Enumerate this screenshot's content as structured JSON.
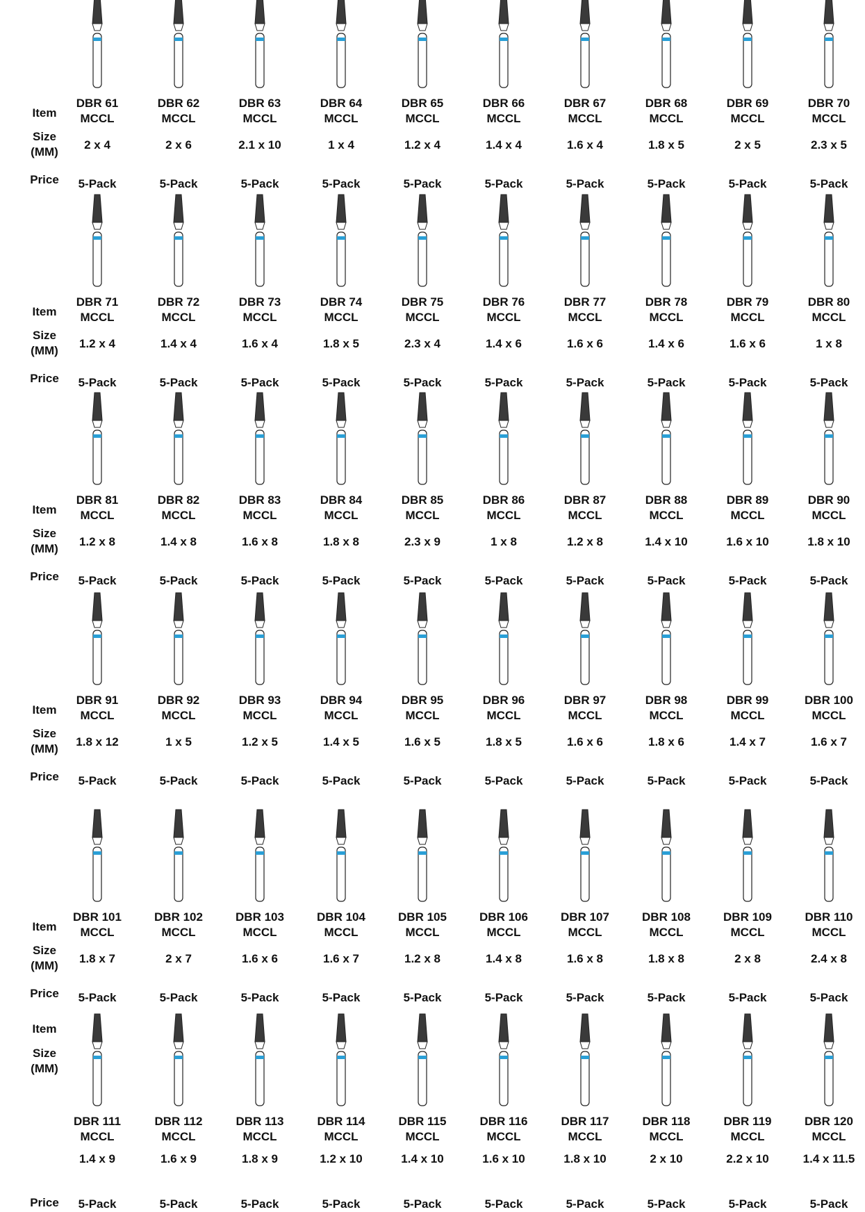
{
  "groups": [
    {
      "labels": {
        "item": "Item",
        "size": "Size (MM)",
        "price": "Price"
      },
      "items": [
        {
          "name": "DBR 61",
          "suffix": "MCCL",
          "size": "2 x 4",
          "price": "5-Pack"
        },
        {
          "name": "DBR 62",
          "suffix": "MCCL",
          "size": "2 x 6",
          "price": "5-Pack"
        },
        {
          "name": "DBR 63",
          "suffix": "MCCL",
          "size": "2.1 x 10",
          "price": "5-Pack"
        },
        {
          "name": "DBR 64",
          "suffix": "MCCL",
          "size": "1 x 4",
          "price": "5-Pack"
        },
        {
          "name": "DBR 65",
          "suffix": "MCCL",
          "size": "1.2 x 4",
          "price": "5-Pack"
        },
        {
          "name": "DBR 66",
          "suffix": "MCCL",
          "size": "1.4 x 4",
          "price": "5-Pack"
        },
        {
          "name": "DBR 67",
          "suffix": "MCCL",
          "size": "1.6 x 4",
          "price": "5-Pack"
        },
        {
          "name": "DBR 68",
          "suffix": "MCCL",
          "size": "1.8 x 5",
          "price": "5-Pack"
        },
        {
          "name": "DBR 69",
          "suffix": "MCCL",
          "size": "2 x 5",
          "price": "5-Pack"
        },
        {
          "name": "DBR 70",
          "suffix": "MCCL",
          "size": "2.3 x 5",
          "price": "5-Pack"
        }
      ]
    },
    {
      "labels": {
        "item": "Item",
        "size": "Size (MM)",
        "price": "Price"
      },
      "items": [
        {
          "name": "DBR 71",
          "suffix": "MCCL",
          "size": "1.2 x 4",
          "price": "5-Pack"
        },
        {
          "name": "DBR 72",
          "suffix": "MCCL",
          "size": "1.4 x 4",
          "price": "5-Pack"
        },
        {
          "name": "DBR 73",
          "suffix": "MCCL",
          "size": "1.6 x 4",
          "price": "5-Pack"
        },
        {
          "name": "DBR 74",
          "suffix": "MCCL",
          "size": "1.8 x 5",
          "price": "5-Pack"
        },
        {
          "name": "DBR 75",
          "suffix": "MCCL",
          "size": "2.3 x 4",
          "price": "5-Pack"
        },
        {
          "name": "DBR 76",
          "suffix": "MCCL",
          "size": "1.4 x 6",
          "price": "5-Pack"
        },
        {
          "name": "DBR 77",
          "suffix": "MCCL",
          "size": "1.6 x 6",
          "price": "5-Pack"
        },
        {
          "name": "DBR 78",
          "suffix": "MCCL",
          "size": "1.4 x 6",
          "price": "5-Pack"
        },
        {
          "name": "DBR 79",
          "suffix": "MCCL",
          "size": "1.6 x 6",
          "price": "5-Pack"
        },
        {
          "name": "DBR 80",
          "suffix": "MCCL",
          "size": "1 x 8",
          "price": "5-Pack"
        }
      ]
    },
    {
      "labels": {
        "item": "Item",
        "size": "Size (MM)",
        "price": "Price"
      },
      "items": [
        {
          "name": "DBR 81",
          "suffix": "MCCL",
          "size": "1.2 x 8",
          "price": "5-Pack"
        },
        {
          "name": "DBR 82",
          "suffix": "MCCL",
          "size": "1.4 x 8",
          "price": "5-Pack"
        },
        {
          "name": "DBR 83",
          "suffix": "MCCL",
          "size": "1.6 x 8",
          "price": "5-Pack"
        },
        {
          "name": "DBR 84",
          "suffix": "MCCL",
          "size": "1.8 x 8",
          "price": "5-Pack"
        },
        {
          "name": "DBR 85",
          "suffix": "MCCL",
          "size": "2.3 x 9",
          "price": "5-Pack"
        },
        {
          "name": "DBR 86",
          "suffix": "MCCL",
          "size": "1 x 8",
          "price": "5-Pack"
        },
        {
          "name": "DBR 87",
          "suffix": "MCCL",
          "size": "1.2 x 8",
          "price": "5-Pack"
        },
        {
          "name": "DBR 88",
          "suffix": "MCCL",
          "size": "1.4 x 10",
          "price": "5-Pack"
        },
        {
          "name": "DBR 89",
          "suffix": "MCCL",
          "size": "1.6 x 10",
          "price": "5-Pack"
        },
        {
          "name": "DBR 90",
          "suffix": "MCCL",
          "size": "1.8 x 10",
          "price": "5-Pack"
        }
      ]
    },
    {
      "labels": {
        "item": "Item",
        "size": "Size (MM)",
        "price": "Price"
      },
      "items": [
        {
          "name": "DBR 91",
          "suffix": "MCCL",
          "size": "1.8 x 12",
          "price": "5-Pack"
        },
        {
          "name": "DBR 92",
          "suffix": "MCCL",
          "size": "1 x 5",
          "price": "5-Pack"
        },
        {
          "name": "DBR 93",
          "suffix": "MCCL",
          "size": "1.2 x 5",
          "price": "5-Pack"
        },
        {
          "name": "DBR 94",
          "suffix": "MCCL",
          "size": "1.4 x 5",
          "price": "5-Pack"
        },
        {
          "name": "DBR 95",
          "suffix": "MCCL",
          "size": "1.6 x 5",
          "price": "5-Pack"
        },
        {
          "name": "DBR 96",
          "suffix": "MCCL",
          "size": "1.8 x 5",
          "price": "5-Pack"
        },
        {
          "name": "DBR 97",
          "suffix": "MCCL",
          "size": "1.6 x 6",
          "price": "5-Pack"
        },
        {
          "name": "DBR 98",
          "suffix": "MCCL",
          "size": "1.8 x 6",
          "price": "5-Pack"
        },
        {
          "name": "DBR 99",
          "suffix": "MCCL",
          "size": "1.4 x 7",
          "price": "5-Pack"
        },
        {
          "name": "DBR 100",
          "suffix": "MCCL",
          "size": "1.6 x 7",
          "price": "5-Pack"
        }
      ]
    },
    {
      "labels": {
        "item": "Item",
        "size": "Size (MM)",
        "price": "Price"
      },
      "items": [
        {
          "name": "DBR 101",
          "suffix": "MCCL",
          "size": "1.8 x 7",
          "price": "5-Pack"
        },
        {
          "name": "DBR 102",
          "suffix": "MCCL",
          "size": "2 x 7",
          "price": "5-Pack"
        },
        {
          "name": "DBR 103",
          "suffix": "MCCL",
          "size": "1.6 x 6",
          "price": "5-Pack"
        },
        {
          "name": "DBR 104",
          "suffix": "MCCL",
          "size": "1.6 x 7",
          "price": "5-Pack"
        },
        {
          "name": "DBR 105",
          "suffix": "MCCL",
          "size": "1.2 x 8",
          "price": "5-Pack"
        },
        {
          "name": "DBR 106",
          "suffix": "MCCL",
          "size": "1.4 x 8",
          "price": "5-Pack"
        },
        {
          "name": "DBR 107",
          "suffix": "MCCL",
          "size": "1.6 x 8",
          "price": "5-Pack"
        },
        {
          "name": "DBR 108",
          "suffix": "MCCL",
          "size": "1.8 x 8",
          "price": "5-Pack"
        },
        {
          "name": "DBR 109",
          "suffix": "MCCL",
          "size": "2 x 8",
          "price": "5-Pack"
        },
        {
          "name": "DBR 110",
          "suffix": "MCCL",
          "size": "2.4 x 8",
          "price": "5-Pack"
        }
      ]
    },
    {
      "labels": {
        "item": "Item",
        "size": "Size (MM)",
        "price": "Price"
      },
      "items": [
        {
          "name": "DBR 111",
          "suffix": "MCCL",
          "size": "1.4 x 9",
          "price": "5-Pack"
        },
        {
          "name": "DBR 112",
          "suffix": "MCCL",
          "size": "1.6 x 9",
          "price": "5-Pack"
        },
        {
          "name": "DBR 113",
          "suffix": "MCCL",
          "size": "1.8 x 9",
          "price": "5-Pack"
        },
        {
          "name": "DBR 114",
          "suffix": "MCCL",
          "size": "1.2 x 10",
          "price": "5-Pack"
        },
        {
          "name": "DBR 115",
          "suffix": "MCCL",
          "size": "1.4 x 10",
          "price": "5-Pack"
        },
        {
          "name": "DBR 116",
          "suffix": "MCCL",
          "size": "1.6 x 10",
          "price": "5-Pack"
        },
        {
          "name": "DBR 117",
          "suffix": "MCCL",
          "size": "1.8 x 10",
          "price": "5-Pack"
        },
        {
          "name": "DBR 118",
          "suffix": "MCCL",
          "size": "2 x 10",
          "price": "5-Pack"
        },
        {
          "name": "DBR 119",
          "suffix": "MCCL",
          "size": "2.2 x 10",
          "price": "5-Pack"
        },
        {
          "name": "DBR 120",
          "suffix": "MCCL",
          "size": "1.4 x 11.5",
          "price": "5-Pack"
        }
      ]
    }
  ]
}
